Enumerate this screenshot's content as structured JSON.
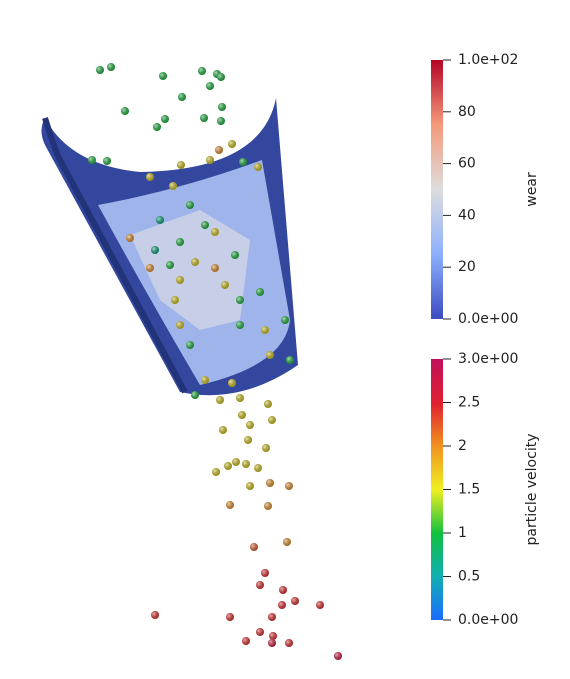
{
  "colorbars": [
    {
      "title": "wear",
      "range": [
        0,
        100
      ],
      "ticks": [
        {
          "value": 0,
          "label": "0.0e+00"
        },
        20,
        40,
        60,
        80,
        {
          "value": 100,
          "label": "1.0e+02"
        }
      ]
    },
    {
      "title": "particle velocity",
      "range": [
        0,
        3
      ],
      "ticks": [
        {
          "value": 0,
          "label": "0.0e+00"
        },
        0.5,
        1,
        1.5,
        2,
        2.5,
        {
          "value": 3,
          "label": "3.0e+00"
        }
      ]
    }
  ]
}
